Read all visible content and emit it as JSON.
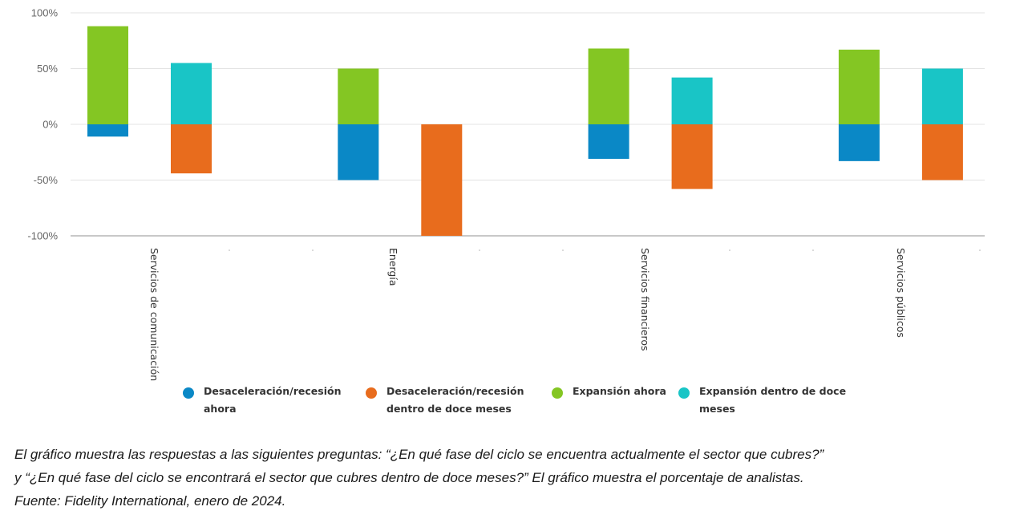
{
  "chart_data": {
    "type": "bar",
    "stacked": "diverging",
    "title": "",
    "xlabel": "",
    "ylabel": "",
    "ylim": [
      -100,
      100
    ],
    "yticks": [
      100,
      50,
      0,
      -50,
      -100
    ],
    "ytick_labels": [
      "100%",
      "50%",
      "0%",
      "-50%",
      "-100%"
    ],
    "grid": true,
    "categories": [
      "Servicios de comunicación",
      "Energía",
      "Servicios financieros",
      "Servicios públicos"
    ],
    "series": [
      {
        "name": "Desaceleración/recesión ahora",
        "color": "#0a88c6",
        "group": "ahora",
        "values": [
          -11,
          -50,
          -31,
          -33
        ]
      },
      {
        "name": "Desaceleración/recesión dentro de doce meses",
        "color": "#e86c1d",
        "group": "doce_meses",
        "values": [
          -44,
          -100,
          -58,
          -50
        ]
      },
      {
        "name": "Expansión ahora",
        "color": "#84c623",
        "group": "ahora",
        "values": [
          88,
          50,
          68,
          67
        ]
      },
      {
        "name": "Expansión dentro de doce meses",
        "color": "#19c5c6",
        "group": "doce_meses",
        "values": [
          55,
          0,
          42,
          50
        ]
      }
    ],
    "legend": {
      "placement": "bottom",
      "items": [
        {
          "line1": "Desaceleración/recesión",
          "line2": "ahora",
          "color": "#0a88c6"
        },
        {
          "line1": "Desaceleración/recesión",
          "line2": "dentro de doce meses",
          "color": "#e86c1d"
        },
        {
          "line1": "Expansión ahora",
          "line2": "",
          "color": "#84c623"
        },
        {
          "line1": "Expansión dentro de doce",
          "line2": "meses",
          "color": "#19c5c6"
        }
      ]
    }
  },
  "caption": {
    "line1": "El gráfico muestra las respuestas a las siguientes preguntas: “¿En qué fase del ciclo se encuentra actualmente el sector que cubres?”",
    "line2": "y “¿En qué fase del ciclo se encontrará el sector que cubres dentro de doce meses?” El gráfico muestra el porcentaje de analistas.",
    "line3": "Fuente: Fidelity International, enero de 2024."
  }
}
